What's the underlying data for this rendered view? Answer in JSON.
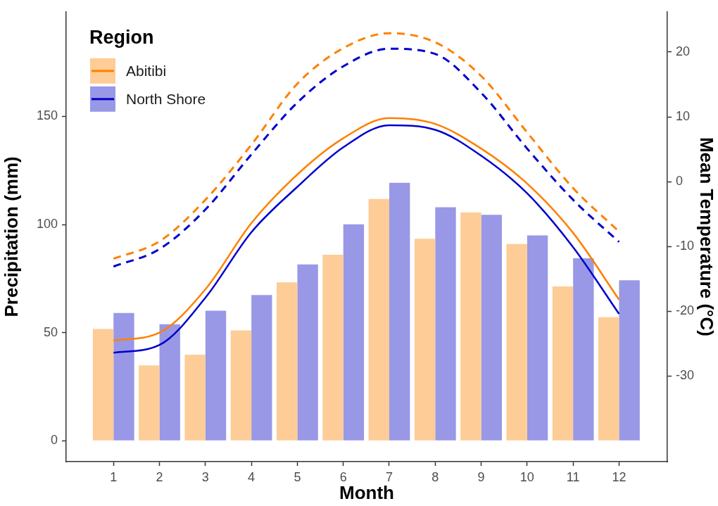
{
  "chart_data": {
    "type": "bar",
    "xlabel": "Month",
    "ylabel": "Precipitation (mm)",
    "y2label": "Mean Temperature (°C)",
    "legend_title": "Region",
    "legend": "top left",
    "x": [
      1,
      2,
      3,
      4,
      5,
      6,
      7,
      8,
      9,
      10,
      11,
      12
    ],
    "xlim": [
      -0.03,
      13.05
    ],
    "xticks": [
      1,
      2,
      3,
      4,
      5,
      6,
      7,
      8,
      9,
      10,
      11,
      12
    ],
    "ylim": [
      -9.7,
      198.4
    ],
    "yticks": [
      0,
      50,
      100,
      150
    ],
    "y2lim": [
      -43.2,
      26.2
    ],
    "y2ticks": [
      -30,
      -20,
      -10,
      0,
      10,
      20
    ],
    "series": [
      {
        "name": "Abitibi",
        "color": "#fecc96",
        "values": [
          51.7,
          34.8,
          39.8,
          51.0,
          73.2,
          86.0,
          111.8,
          93.4,
          105.6,
          91.0,
          71.4,
          57.1
        ]
      },
      {
        "name": "North Shore",
        "color": "#9898e6",
        "values": [
          59.1,
          53.9,
          60.1,
          67.4,
          81.5,
          100.1,
          119.3,
          108.0,
          104.5,
          95.0,
          84.4,
          74.2
        ]
      },
      {
        "type": "line",
        "axis": "y2",
        "color": "#ff8000",
        "line_style": "solid",
        "values": [
          -24.5,
          -23.3,
          -16.6,
          -6.4,
          1.1,
          6.7,
          9.8,
          8.9,
          5.1,
          -0.3,
          -7.9,
          -18.2
        ]
      },
      {
        "type": "line",
        "axis": "y2",
        "color": "#0000cc",
        "line_style": "solid",
        "values": [
          -26.4,
          -25.2,
          -17.9,
          -7.8,
          -0.8,
          5.3,
          8.7,
          8.0,
          4.0,
          -1.8,
          -10.1,
          -20.4
        ]
      },
      {
        "type": "line",
        "axis": "y2",
        "color": "#ff8000",
        "line_style": "dashed",
        "values": [
          -11.9,
          -9.2,
          -2.8,
          5.7,
          15.1,
          20.6,
          22.9,
          21.5,
          16.3,
          7.6,
          -1.0,
          -7.7
        ]
      },
      {
        "type": "line",
        "axis": "y2",
        "color": "#0000cc",
        "line_style": "dashed",
        "values": [
          -13.1,
          -10.4,
          -4.3,
          4.2,
          12.2,
          17.8,
          20.5,
          19.7,
          13.7,
          5.1,
          -2.8,
          -9.3
        ]
      }
    ]
  }
}
